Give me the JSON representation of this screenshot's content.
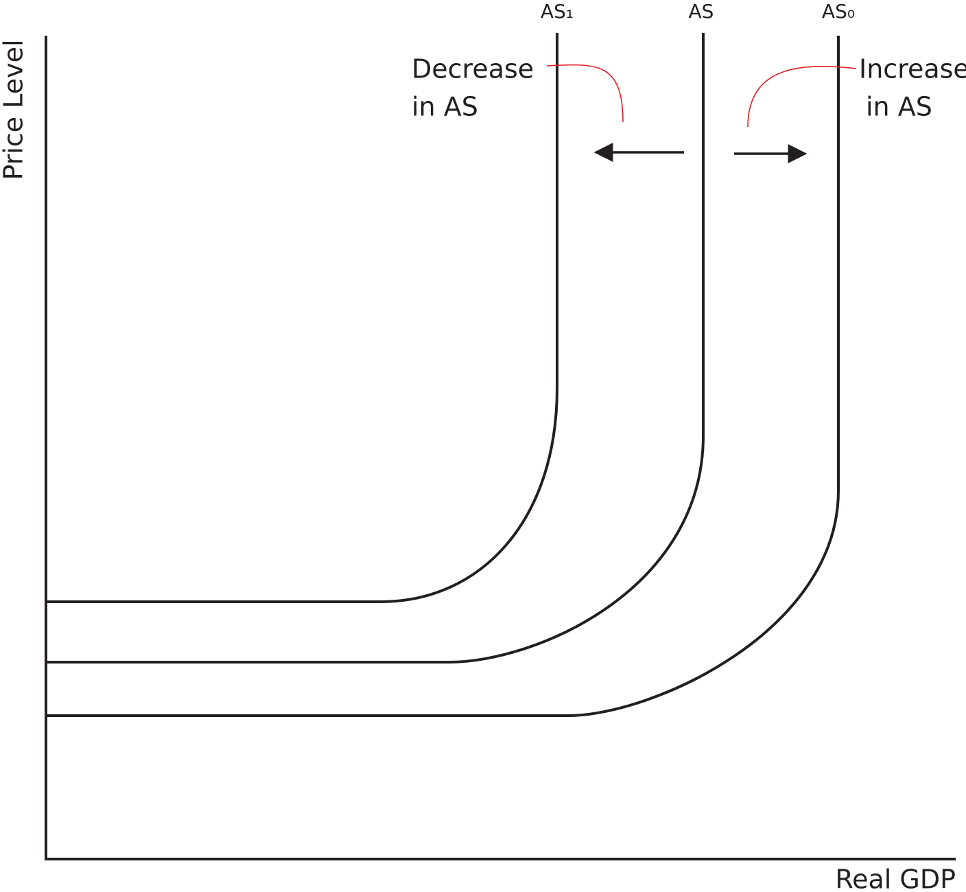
{
  "curves": [
    {
      "label": "AS₁"
    },
    {
      "label": "AS"
    },
    {
      "label": "AS₀"
    }
  ],
  "axes": {
    "y_label": "Price Level",
    "x_label": "Real GDP"
  },
  "annotations": [
    {
      "lines": [
        "Decrease",
        "in AS"
      ]
    },
    {
      "lines": [
        "Increase",
        "in AS"
      ]
    }
  ]
}
